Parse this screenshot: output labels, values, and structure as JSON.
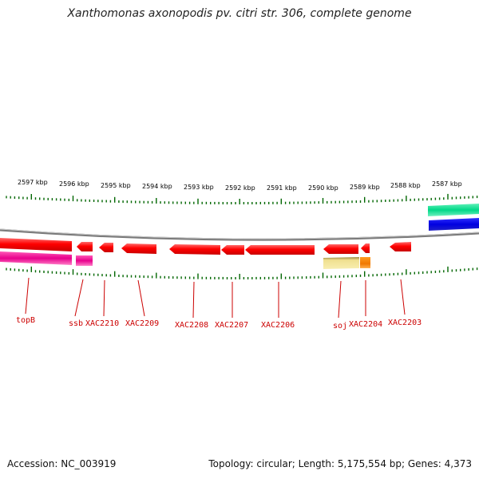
{
  "title": "Xanthomonas axonopodis pv. citri str. 306, complete genome",
  "accession_text": "Accession: NC_003919",
  "summary_text": "Topology: circular; Length: 5,175,554 bp; Genes: 4,373",
  "colors": {
    "gene_forward": "#ff0000",
    "ticks": "#006600",
    "label": "#cc0000",
    "backbone": "#888888",
    "magenta": "#e8008c",
    "pale_yellow": "#f0e090",
    "orange": "#ff8800",
    "green_band": "#00e08c",
    "blue_band": "#0000e8"
  },
  "scale": {
    "unit": "kbp",
    "labels": [
      "2597 kbp",
      "2596 kbp",
      "2595 kbp",
      "2594 kbp",
      "2593 kbp",
      "2592 kbp",
      "2591 kbp",
      "2590 kbp",
      "2589 kbp",
      "2588 kbp",
      "2587 kbp"
    ]
  },
  "genes": [
    {
      "name": "topB"
    },
    {
      "name": "ssb"
    },
    {
      "name": "XAC2210"
    },
    {
      "name": "XAC2209"
    },
    {
      "name": "XAC2208"
    },
    {
      "name": "XAC2207"
    },
    {
      "name": "XAC2206"
    },
    {
      "name": "soj"
    },
    {
      "name": "XAC2204"
    },
    {
      "name": "XAC2203"
    }
  ]
}
